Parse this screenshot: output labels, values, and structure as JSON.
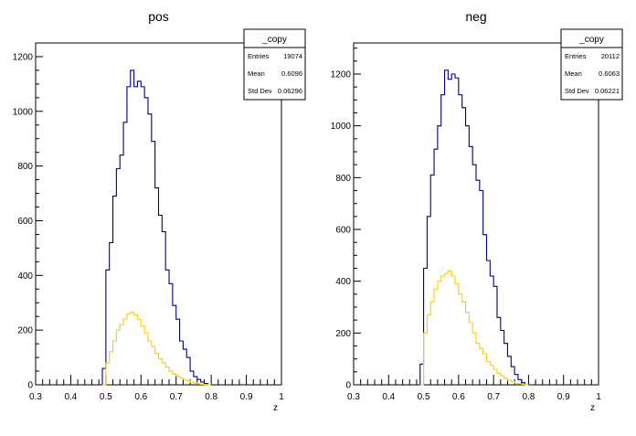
{
  "chart_data": [
    {
      "type": "histogram",
      "title": "pos",
      "xlabel": "z",
      "ylabel": "",
      "xlim": [
        0.3,
        1.0
      ],
      "ylim": [
        0,
        1250
      ],
      "x_ticks": [
        "0.3",
        "0.4",
        "0.5",
        "0.6",
        "0.7",
        "0.8",
        "0.9",
        "1"
      ],
      "y_ticks": [
        "0",
        "200",
        "400",
        "600",
        "800",
        "1000",
        "1200"
      ],
      "bin_width": 0.01,
      "series": [
        {
          "color": "#000080",
          "x_start": 0.49,
          "values": [
            60,
            420,
            520,
            690,
            790,
            840,
            960,
            1090,
            1150,
            1090,
            1110,
            1090,
            1050,
            990,
            890,
            720,
            620,
            560,
            420,
            370,
            290,
            240,
            160,
            130,
            100,
            50,
            30,
            20,
            10,
            5,
            0
          ]
        },
        {
          "color": "#ffcc00",
          "x_start": 0.49,
          "values": [
            0,
            80,
            120,
            160,
            200,
            220,
            240,
            260,
            265,
            255,
            240,
            215,
            190,
            160,
            140,
            115,
            95,
            80,
            65,
            50,
            40,
            32,
            25,
            20,
            15,
            10,
            6,
            3,
            2,
            1,
            0
          ]
        }
      ],
      "stats_box": {
        "title": "_copy",
        "rows": [
          {
            "label": "Entries",
            "value": "19074"
          },
          {
            "label": "Mean",
            "value": "0.6096"
          },
          {
            "label": "Std Dev",
            "value": "0.06296"
          }
        ]
      }
    },
    {
      "type": "histogram",
      "title": "neg",
      "xlabel": "z",
      "ylabel": "",
      "xlim": [
        0.3,
        1.0
      ],
      "ylim": [
        0,
        1320
      ],
      "x_ticks": [
        "0.3",
        "0.4",
        "0.5",
        "0.6",
        "0.7",
        "0.8",
        "0.9",
        "1"
      ],
      "y_ticks": [
        "0",
        "200",
        "400",
        "600",
        "800",
        "1000",
        "1200"
      ],
      "bin_width": 0.01,
      "series": [
        {
          "color": "#000080",
          "x_start": 0.49,
          "values": [
            80,
            450,
            650,
            810,
            910,
            1000,
            1120,
            1215,
            1180,
            1200,
            1185,
            1120,
            1070,
            1000,
            920,
            850,
            790,
            750,
            580,
            480,
            420,
            380,
            260,
            210,
            160,
            110,
            70,
            40,
            20,
            8,
            0
          ]
        },
        {
          "color": "#ffcc00",
          "x_start": 0.49,
          "values": [
            0,
            200,
            270,
            320,
            370,
            400,
            420,
            430,
            440,
            420,
            390,
            350,
            320,
            280,
            240,
            200,
            160,
            140,
            120,
            90,
            75,
            60,
            45,
            35,
            25,
            18,
            12,
            7,
            4,
            2,
            0
          ]
        }
      ],
      "stats_box": {
        "title": "_copy",
        "rows": [
          {
            "label": "Entries",
            "value": "20112"
          },
          {
            "label": "Mean",
            "value": "0.6063"
          },
          {
            "label": "Std Dev",
            "value": "0.06221"
          }
        ]
      }
    }
  ]
}
